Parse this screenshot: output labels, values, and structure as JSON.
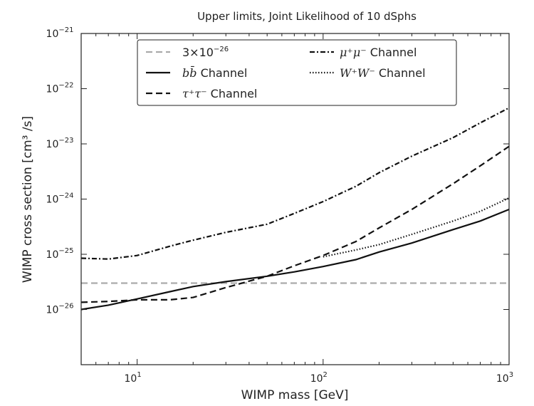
{
  "chart_data": {
    "type": "line",
    "title": "Upper limits, Joint Likelihood of 10 dSphs",
    "xlabel": "WIMP mass [GeV]",
    "ylabel": "WIMP cross section [cm³ /s]",
    "xscale": "log",
    "yscale": "log",
    "xlim": [
      5,
      1000
    ],
    "ylim": [
      1e-27,
      1e-21
    ],
    "grid": false,
    "legend_position": "top",
    "x_ticks": [
      {
        "value": 10,
        "base": "10",
        "exp": "1"
      },
      {
        "value": 100,
        "base": "10",
        "exp": "2"
      },
      {
        "value": 1000,
        "base": "10",
        "exp": "3"
      }
    ],
    "y_ticks": [
      {
        "value": 1e-26,
        "base": "10",
        "exp": "−26"
      },
      {
        "value": 1e-25,
        "base": "10",
        "exp": "−25"
      },
      {
        "value": 1e-24,
        "base": "10",
        "exp": "−24"
      },
      {
        "value": 1e-23,
        "base": "10",
        "exp": "−23"
      },
      {
        "value": 1e-22,
        "base": "10",
        "exp": "−22"
      },
      {
        "value": 1e-21,
        "base": "10",
        "exp": "−21"
      }
    ],
    "series": [
      {
        "id": "thermal",
        "name": "3×10⁻²⁶",
        "style": "dashed",
        "color": "#aaaaaa",
        "x": [
          5,
          1000
        ],
        "y": [
          3e-26,
          3e-26
        ]
      },
      {
        "id": "bb",
        "name": "b b̄ Channel",
        "style": "solid",
        "color": "#111111",
        "x": [
          5,
          7,
          10,
          15,
          20,
          30,
          50,
          70,
          100,
          150,
          200,
          300,
          500,
          700,
          1000
        ],
        "y": [
          1e-26,
          1.2e-26,
          1.55e-26,
          2.1e-26,
          2.6e-26,
          3.2e-26,
          4e-26,
          4.8e-26,
          6e-26,
          8e-26,
          1.1e-25,
          1.6e-25,
          2.8e-25,
          4e-25,
          6.5e-25
        ]
      },
      {
        "id": "tautau",
        "name": "τ⁺τ⁻ Channel",
        "style": "dashed",
        "color": "#111111",
        "x": [
          5,
          7,
          10,
          15,
          20,
          30,
          50,
          70,
          100,
          150,
          200,
          300,
          500,
          700,
          1000
        ],
        "y": [
          1.35e-26,
          1.4e-26,
          1.5e-26,
          1.5e-26,
          1.65e-26,
          2.5e-26,
          4e-26,
          6.2e-26,
          9.5e-26,
          1.7e-25,
          3e-25,
          6.5e-25,
          1.9e-24,
          4e-24,
          9e-24
        ]
      },
      {
        "id": "mumu",
        "name": "μ⁺μ⁻ Channel",
        "style": "dashdot",
        "color": "#111111",
        "x": [
          5,
          7,
          10,
          15,
          20,
          30,
          50,
          70,
          100,
          150,
          200,
          300,
          500,
          700,
          1000
        ],
        "y": [
          8.5e-26,
          8.2e-26,
          9.5e-26,
          1.4e-25,
          1.8e-25,
          2.5e-25,
          3.5e-25,
          5.5e-25,
          9e-25,
          1.7e-24,
          3e-24,
          6e-24,
          1.3e-23,
          2.4e-23,
          4.5e-23
        ]
      },
      {
        "id": "ww",
        "name": "W⁺W⁻ Channel",
        "style": "dotted",
        "color": "#111111",
        "x": [
          100,
          150,
          200,
          300,
          500,
          700,
          1000
        ],
        "y": [
          9e-26,
          1.2e-25,
          1.5e-25,
          2.3e-25,
          4e-25,
          6e-25,
          1.05e-24
        ]
      }
    ],
    "legend": [
      {
        "series": "thermal",
        "label_base": "3×10",
        "label_exp": "−26"
      },
      {
        "series": "bb",
        "label_math": "bb̄",
        "label_text": " Channel"
      },
      {
        "series": "tautau",
        "label_math": "τ⁺τ⁻",
        "label_text": "  Channel"
      },
      {
        "series": "mumu",
        "label_math": "μ⁺μ⁻",
        "label_text": "  Channel"
      },
      {
        "series": "ww",
        "label_math": "W⁺W⁻",
        "label_text": "  Channel"
      }
    ]
  }
}
